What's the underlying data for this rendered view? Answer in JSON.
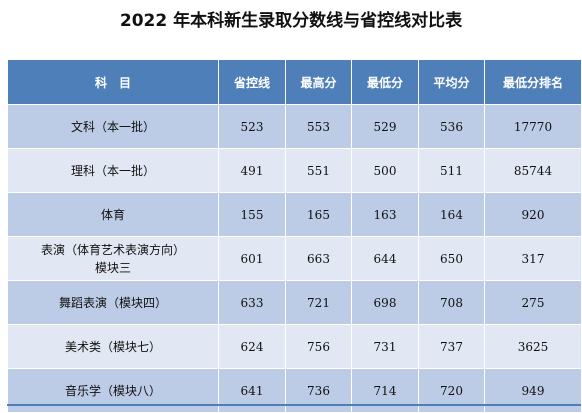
{
  "title": "2022 年本科新生录取分数线与省控线对比表",
  "table": {
    "headers": [
      "科　目",
      "省控线",
      "最高分",
      "最低分",
      "平均分",
      "最低分排名"
    ],
    "rows": [
      {
        "subject": "文科（本一批）",
        "control": "523",
        "max": "553",
        "min": "529",
        "avg": "536",
        "rank": "17770"
      },
      {
        "subject": "理科（本一批）",
        "control": "491",
        "max": "551",
        "min": "500",
        "avg": "511",
        "rank": "85744"
      },
      {
        "subject": "体育",
        "control": "155",
        "max": "165",
        "min": "163",
        "avg": "164",
        "rank": "920"
      },
      {
        "subject": "表演（体育艺术表演方向）",
        "subject_line2": "模块三",
        "control": "601",
        "max": "663",
        "min": "644",
        "avg": "650",
        "rank": "317"
      },
      {
        "subject": "舞蹈表演（模块四）",
        "control": "633",
        "max": "721",
        "min": "698",
        "avg": "708",
        "rank": "275"
      },
      {
        "subject": "美术类（模块七）",
        "control": "624",
        "max": "756",
        "min": "731",
        "avg": "737",
        "rank": "3625"
      },
      {
        "subject": "音乐学（模块八）",
        "control": "641",
        "max": "736",
        "min": "714",
        "avg": "720",
        "rank": "949"
      }
    ]
  },
  "colors": {
    "header_bg": "#4f7fb8",
    "row_dark": "#bccbe6",
    "row_light": "#e2e8f3"
  }
}
